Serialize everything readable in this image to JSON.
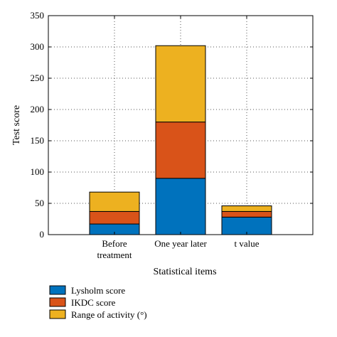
{
  "chart_data": {
    "type": "bar",
    "stacked": true,
    "categories": [
      "Before treatment",
      "One year later",
      "t value"
    ],
    "category_label_lines": [
      [
        "Before",
        "treatment"
      ],
      [
        "One year later"
      ],
      [
        "t value"
      ]
    ],
    "series": [
      {
        "name": "Lysholm score",
        "values": [
          17,
          90,
          28
        ],
        "color": "#0072bd"
      },
      {
        "name": "IKDC score",
        "values": [
          20,
          90,
          9
        ],
        "color": "#d95319"
      },
      {
        "name": "Range of activity (°)",
        "values": [
          31,
          122,
          9
        ],
        "color": "#edb120"
      }
    ],
    "xlabel": "Statistical items",
    "ylabel": "Test score",
    "ylim": [
      0,
      350
    ],
    "yticks": [
      0,
      50,
      100,
      150,
      200,
      250,
      300,
      350
    ],
    "grid": true,
    "legend_position": "bottom-left"
  }
}
